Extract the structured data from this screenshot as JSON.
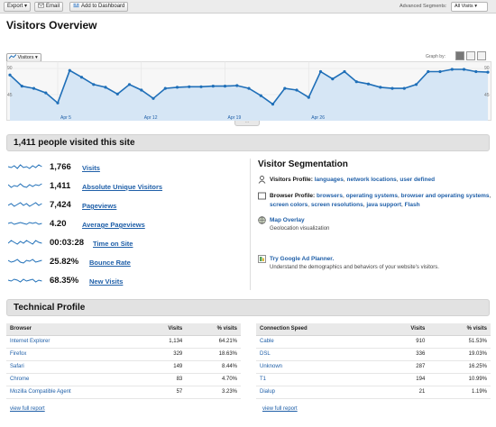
{
  "toolbar": {
    "export_label": "Export",
    "email_label": "Email",
    "dashboard_label": "Add to Dashboard",
    "segments_label": "Advanced Segments:",
    "segments_value": "All Visits"
  },
  "page_title": "Visitors Overview",
  "graph": {
    "metric": "Visitors",
    "graph_by_label": "Graph by:",
    "y_top_label": "90",
    "y_mid_label": "45",
    "y_top_label_right": "90",
    "y_mid_label_right": "45",
    "x_labels": [
      "Apr 5",
      "Apr 12",
      "Apr 19",
      "Apr 26"
    ],
    "color": "#1f6fb8"
  },
  "chart_data": {
    "type": "area",
    "series": [
      {
        "name": "Visitors",
        "values": [
          72,
          52,
          48,
          40,
          22,
          80,
          68,
          55,
          50,
          38,
          55,
          45,
          30,
          48,
          50,
          51,
          51,
          52,
          52,
          53,
          48,
          35,
          20,
          48,
          45,
          32,
          78,
          65,
          78,
          60,
          56,
          50,
          48,
          48,
          55,
          78,
          78,
          82,
          82,
          78,
          77
        ]
      }
    ],
    "x_tick_labels": [
      "Apr 5",
      "Apr 12",
      "Apr 19",
      "Apr 26"
    ],
    "ylim": [
      0,
      90
    ],
    "y_tick_labels": [
      "45",
      "90"
    ]
  },
  "summary": {
    "title": "1,411 people visited this site",
    "metrics": [
      {
        "value": "1,766",
        "label": "Visits"
      },
      {
        "value": "1,411",
        "label": "Absolute Unique Visitors"
      },
      {
        "value": "7,424",
        "label": "Pageviews"
      },
      {
        "value": "4.20",
        "label": "Average Pageviews"
      },
      {
        "value": "00:03:28",
        "label": "Time on Site"
      },
      {
        "value": "25.82%",
        "label": "Bounce Rate"
      },
      {
        "value": "68.35%",
        "label": "New Visits"
      }
    ]
  },
  "segmentation": {
    "title": "Visitor Segmentation",
    "visitors_profile": {
      "label": "Visitors Profile:",
      "links": [
        "languages",
        "network locations",
        "user defined"
      ]
    },
    "browser_profile": {
      "label": "Browser Profile:",
      "links": [
        "browsers",
        "operating systems",
        "browser and operating systems",
        "screen colors",
        "screen resolutions",
        "java support",
        "Flash"
      ]
    },
    "map_overlay": {
      "label": "Map Overlay",
      "sub": "Geolocation visualization"
    },
    "ad_planner": {
      "label": "Try Google Ad Planner.",
      "sub": "Understand the demographics and behaviors of your website's visitors."
    }
  },
  "technical": {
    "title": "Technical Profile",
    "browser_table": {
      "headers": [
        "Browser",
        "Visits",
        "% visits"
      ],
      "rows": [
        [
          "Internet Explorer",
          "1,134",
          "64.21%"
        ],
        [
          "Firefox",
          "329",
          "18.63%"
        ],
        [
          "Safari",
          "149",
          "8.44%"
        ],
        [
          "Chrome",
          "83",
          "4.70%"
        ],
        [
          "Mozilla Compatible Agent",
          "57",
          "3.23%"
        ]
      ],
      "full_report": "view full report"
    },
    "connection_table": {
      "headers": [
        "Connection Speed",
        "Visits",
        "% visits"
      ],
      "rows": [
        [
          "Cable",
          "910",
          "51.53%"
        ],
        [
          "DSL",
          "336",
          "19.03%"
        ],
        [
          "Unknown",
          "287",
          "16.25%"
        ],
        [
          "T1",
          "194",
          "10.99%"
        ],
        [
          "Dialup",
          "21",
          "1.19%"
        ]
      ],
      "full_report": "view full report"
    }
  }
}
